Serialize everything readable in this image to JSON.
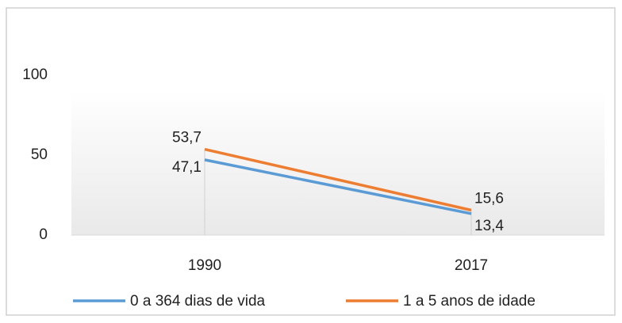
{
  "chart_data": {
    "type": "line",
    "categories": [
      "1990",
      "2017"
    ],
    "series": [
      {
        "name": "0 a 364 dias de vida",
        "color": "#5b9bd5",
        "values": [
          47.1,
          13.4
        ],
        "value_labels": [
          "47,1",
          "13,4"
        ]
      },
      {
        "name": "1 a 5 anos de idade",
        "color": "#ed7d31",
        "values": [
          53.7,
          15.6
        ],
        "value_labels": [
          "53,7",
          "15,6"
        ]
      }
    ],
    "ylim": [
      0,
      100
    ],
    "yticks": [
      0,
      50,
      100
    ],
    "grid": false,
    "legend": "bottom",
    "drop_lines": true
  }
}
